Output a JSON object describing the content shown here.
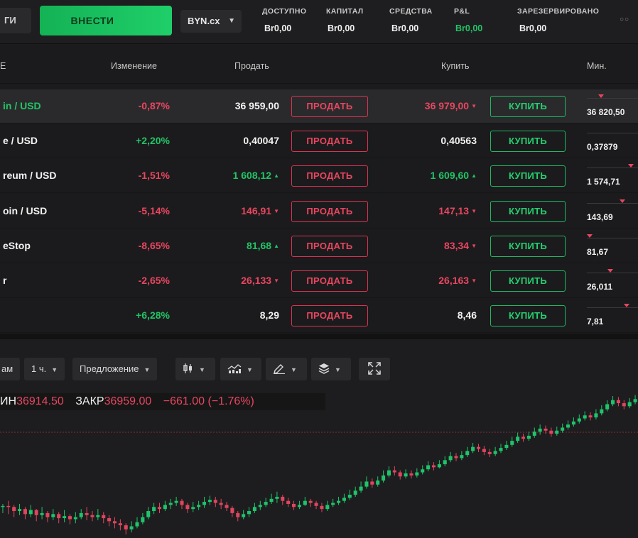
{
  "topbar": {
    "left_button": "ГИ",
    "deposit_button": "ВНЕСТИ",
    "currency": "BYN.cx",
    "stats": [
      {
        "label": "ДОСТУПНО",
        "value": "Br0,00",
        "color": "white"
      },
      {
        "label": "КАПИТАЛ",
        "value": "Br0,00",
        "color": "white"
      },
      {
        "label": "СРЕДСТВА",
        "value": "Br0,00",
        "color": "white"
      },
      {
        "label": "P&L",
        "value": "Br0,00",
        "color": "green"
      },
      {
        "label": "ЗАРЕЗЕРВИРОВАНО",
        "value": "Br0,00",
        "color": "white"
      }
    ]
  },
  "table": {
    "headers": {
      "name": "Е",
      "change": "Изменение",
      "sell": "Продать",
      "buy": "Купить",
      "min": "Мин."
    },
    "sell_label": "ПРОДАТЬ",
    "buy_label": "КУПИТЬ",
    "rows": [
      {
        "name": "in / USD",
        "name_color": "green",
        "change": "-0,87%",
        "change_color": "red",
        "sell": "36 959,00",
        "sell_color": "white",
        "sell_arrow": "",
        "buy": "36 979,00",
        "buy_color": "red",
        "buy_arrow": "▼",
        "min": "36 820,50",
        "min_arrow": 0.25,
        "highlight": true
      },
      {
        "name": "e / USD",
        "name_color": "white",
        "change": "+2,20%",
        "change_color": "green",
        "sell": "0,40047",
        "sell_color": "white",
        "sell_arrow": "",
        "buy": "0,40563",
        "buy_color": "white",
        "buy_arrow": "",
        "min": "0,37879",
        "min_arrow": null,
        "highlight": false
      },
      {
        "name": "reum / USD",
        "name_color": "white",
        "change": "-1,51%",
        "change_color": "red",
        "sell": "1 608,12",
        "sell_color": "green",
        "sell_arrow": "▲",
        "buy": "1 609,60",
        "buy_color": "green",
        "buy_arrow": "▲",
        "min": "1 574,71",
        "min_arrow": 0.9,
        "highlight": false
      },
      {
        "name": "oin / USD",
        "name_color": "white",
        "change": "-5,14%",
        "change_color": "red",
        "sell": "146,91",
        "sell_color": "red",
        "sell_arrow": "▼",
        "buy": "147,13",
        "buy_color": "red",
        "buy_arrow": "▼",
        "min": "143,69",
        "min_arrow": 0.72,
        "highlight": false
      },
      {
        "name": "eStop",
        "name_color": "white",
        "change": "-8,65%",
        "change_color": "red",
        "sell": "81,68",
        "sell_color": "green",
        "sell_arrow": "▲",
        "buy": "83,34",
        "buy_color": "red",
        "buy_arrow": "▼",
        "min": "81,67",
        "min_arrow": 0.0,
        "highlight": false
      },
      {
        "name": "r",
        "name_color": "white",
        "change": "-2,65%",
        "change_color": "red",
        "sell": "26,133",
        "sell_color": "red",
        "sell_arrow": "▼",
        "buy": "26,163",
        "buy_color": "red",
        "buy_arrow": "▼",
        "min": "26,011",
        "min_arrow": 0.45,
        "highlight": false
      },
      {
        "name": "",
        "name_color": "white",
        "change": "+6,28%",
        "change_color": "green",
        "sell": "8,29",
        "sell_color": "white",
        "sell_arrow": "",
        "buy": "8,46",
        "buy_color": "white",
        "buy_arrow": "",
        "min": "7,81",
        "min_arrow": 0.82,
        "highlight": false
      }
    ]
  },
  "chart_toolbar": {
    "range_label": "ам",
    "interval": "1 ч.",
    "price_type": "Предложение",
    "icons": [
      "candlestick-icon",
      "indicators-icon",
      "draw-icon",
      "layers-icon",
      "fullscreen-icon"
    ]
  },
  "ohlc": {
    "min_label": "ИН",
    "min_value": "36914.50",
    "close_label": "ЗАКР",
    "close_value": "36959.00",
    "change": "−661.00 (−1.76%)"
  },
  "colors": {
    "up": "#1fc46a",
    "down": "#e0455e",
    "accent": "#1fcf69"
  },
  "chart_data": {
    "type": "candlestick",
    "candles": [
      [
        82,
        83,
        76,
        85
      ],
      [
        83,
        82,
        75,
        88
      ],
      [
        82,
        78,
        72,
        84
      ],
      [
        78,
        80,
        74,
        85
      ],
      [
        80,
        75,
        70,
        82
      ],
      [
        75,
        79,
        72,
        84
      ],
      [
        79,
        74,
        68,
        80
      ],
      [
        74,
        76,
        70,
        82
      ],
      [
        76,
        72,
        67,
        78
      ],
      [
        72,
        75,
        69,
        80
      ],
      [
        75,
        71,
        66,
        77
      ],
      [
        71,
        73,
        67,
        79
      ],
      [
        73,
        70,
        65,
        75
      ],
      [
        70,
        72,
        66,
        77
      ],
      [
        72,
        76,
        70,
        80
      ],
      [
        76,
        74,
        69,
        82
      ],
      [
        74,
        72,
        68,
        78
      ],
      [
        72,
        74,
        69,
        80
      ],
      [
        74,
        71,
        66,
        77
      ],
      [
        71,
        68,
        63,
        74
      ],
      [
        68,
        66,
        61,
        72
      ],
      [
        66,
        64,
        59,
        70
      ],
      [
        64,
        60,
        55,
        66
      ],
      [
        60,
        63,
        57,
        68
      ],
      [
        63,
        67,
        61,
        72
      ],
      [
        67,
        72,
        65,
        76
      ],
      [
        72,
        78,
        70,
        82
      ],
      [
        78,
        82,
        75,
        86
      ],
      [
        82,
        80,
        76,
        86
      ],
      [
        80,
        84,
        78,
        88
      ],
      [
        84,
        86,
        80,
        90
      ],
      [
        86,
        88,
        83,
        92
      ],
      [
        88,
        84,
        80,
        90
      ],
      [
        84,
        80,
        76,
        86
      ],
      [
        80,
        82,
        77,
        87
      ],
      [
        82,
        84,
        79,
        88
      ],
      [
        84,
        87,
        81,
        92
      ],
      [
        87,
        89,
        84,
        93
      ],
      [
        89,
        86,
        82,
        92
      ],
      [
        86,
        84,
        80,
        90
      ],
      [
        84,
        81,
        78,
        87
      ],
      [
        81,
        76,
        72,
        83
      ],
      [
        76,
        72,
        68,
        78
      ],
      [
        72,
        75,
        70,
        79
      ],
      [
        75,
        78,
        72,
        82
      ],
      [
        78,
        82,
        76,
        86
      ],
      [
        82,
        84,
        79,
        88
      ],
      [
        84,
        87,
        82,
        91
      ],
      [
        87,
        90,
        85,
        95
      ],
      [
        90,
        92,
        86,
        97
      ],
      [
        92,
        88,
        84,
        94
      ],
      [
        88,
        85,
        82,
        91
      ],
      [
        85,
        82,
        79,
        88
      ],
      [
        82,
        84,
        80,
        88
      ],
      [
        84,
        88,
        83,
        92
      ],
      [
        88,
        86,
        82,
        90
      ],
      [
        86,
        83,
        80,
        88
      ],
      [
        83,
        80,
        77,
        86
      ],
      [
        80,
        84,
        78,
        88
      ],
      [
        84,
        86,
        82,
        90
      ],
      [
        86,
        88,
        84,
        92
      ],
      [
        88,
        91,
        86,
        95
      ],
      [
        91,
        94,
        89,
        99
      ],
      [
        94,
        98,
        92,
        102
      ],
      [
        98,
        102,
        96,
        107
      ],
      [
        102,
        107,
        100,
        112
      ],
      [
        107,
        104,
        101,
        110
      ],
      [
        104,
        108,
        102,
        112
      ],
      [
        108,
        113,
        106,
        118
      ],
      [
        113,
        118,
        111,
        122
      ],
      [
        118,
        116,
        113,
        122
      ],
      [
        116,
        112,
        109,
        118
      ],
      [
        112,
        115,
        110,
        119
      ],
      [
        115,
        113,
        110,
        118
      ],
      [
        113,
        116,
        111,
        120
      ],
      [
        116,
        119,
        114,
        123
      ],
      [
        119,
        123,
        117,
        127
      ],
      [
        123,
        121,
        118,
        126
      ],
      [
        121,
        124,
        120,
        128
      ],
      [
        124,
        128,
        122,
        132
      ],
      [
        128,
        132,
        126,
        136
      ],
      [
        132,
        130,
        127,
        135
      ],
      [
        130,
        133,
        128,
        137
      ],
      [
        133,
        137,
        131,
        141
      ],
      [
        137,
        141,
        135,
        145
      ],
      [
        141,
        139,
        136,
        144
      ],
      [
        139,
        136,
        133,
        142
      ],
      [
        136,
        134,
        131,
        139
      ],
      [
        134,
        137,
        132,
        141
      ],
      [
        137,
        140,
        135,
        144
      ],
      [
        140,
        143,
        138,
        147
      ],
      [
        143,
        147,
        141,
        151
      ],
      [
        147,
        151,
        145,
        155
      ],
      [
        151,
        149,
        146,
        154
      ],
      [
        149,
        152,
        147,
        156
      ],
      [
        152,
        156,
        150,
        160
      ],
      [
        156,
        159,
        153,
        163
      ],
      [
        159,
        157,
        154,
        162
      ],
      [
        157,
        154,
        151,
        160
      ],
      [
        154,
        157,
        152,
        161
      ],
      [
        157,
        160,
        155,
        164
      ],
      [
        160,
        163,
        158,
        167
      ],
      [
        163,
        166,
        161,
        170
      ],
      [
        166,
        169,
        164,
        173
      ],
      [
        169,
        172,
        167,
        176
      ],
      [
        172,
        170,
        167,
        175
      ],
      [
        170,
        174,
        168,
        178
      ],
      [
        174,
        178,
        172,
        182
      ],
      [
        178,
        183,
        176,
        187
      ],
      [
        183,
        187,
        181,
        191
      ],
      [
        187,
        184,
        181,
        190
      ],
      [
        184,
        181,
        178,
        187
      ],
      [
        181,
        185,
        179,
        189
      ],
      [
        185,
        188,
        183,
        192
      ]
    ]
  }
}
